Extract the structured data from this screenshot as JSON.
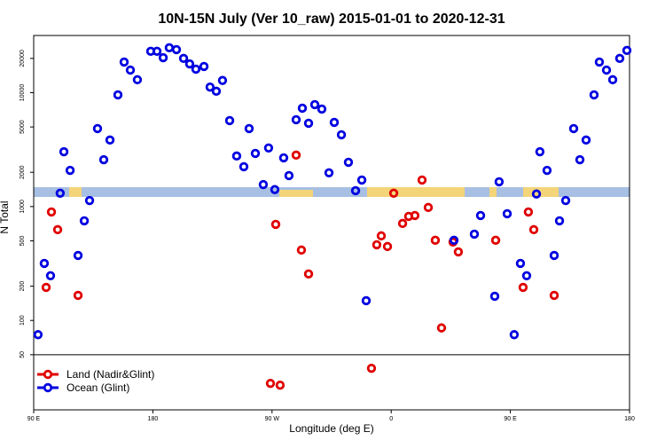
{
  "chart_data": {
    "type": "scatter",
    "title": "10N-15N July (Ver 10_raw)   2015-01-01 to 2020-12-31",
    "x_label": "Longitude (deg E)",
    "y_label": "N Total",
    "xlim": [
      90,
      540
    ],
    "xticks": [
      {
        "value": 90,
        "label": "90 E"
      },
      180,
      {
        "value": 270,
        "label": "90 W"
      },
      {
        "value": 360,
        "label": "0"
      },
      {
        "value": 450,
        "label": "90 E"
      },
      {
        "value": 540,
        "label": "180"
      }
    ],
    "ylim": [
      16.4,
      31800
    ],
    "log_y": true,
    "yticks": [
      50,
      100,
      200,
      500,
      1000,
      2000,
      5000,
      10000,
      20000
    ],
    "legend": "bottom-left",
    "series": [
      {
        "name": "Land (Nadir&Glint)",
        "color": "#e00000",
        "x": [
          99.4,
          103.4,
          108.1,
          123.5,
          272.8,
          288.2,
          292.2,
          297.6,
          345.1,
          349.1,
          352.5,
          357.2,
          361.9,
          368.6,
          373.2,
          377.9,
          383.3,
          388,
          393.3,
          398,
          406.7,
          410.7,
          438.9,
          459.6,
          463.6,
          467.7,
          483.1,
          268.8,
          276.1
        ],
        "values": [
          195,
          897,
          627,
          166,
          698,
          2830,
          415,
          256,
          38,
          462,
          553,
          446,
          1310,
          711,
          820,
          835,
          1710,
          982,
          506,
          86,
          488,
          400,
          506,
          195,
          897,
          627,
          166,
          28,
          27
        ]
      },
      {
        "name": "Ocean (Glint)",
        "color": "#0000e0",
        "x": [
          93.3,
          98,
          102.7,
          110,
          112.8,
          117.5,
          123.5,
          128.2,
          132.2,
          138.2,
          142.9,
          147.6,
          153.6,
          158.3,
          163,
          168.3,
          178.4,
          183.1,
          187.8,
          192.4,
          197.8,
          203.2,
          207.8,
          212.5,
          218.6,
          223.2,
          227.9,
          232.6,
          238,
          243.3,
          248.7,
          252.7,
          257.4,
          263.4,
          267.4,
          272.1,
          278.8,
          282.8,
          288.2,
          292.9,
          297.6,
          302.3,
          307.6,
          313,
          317,
          322.4,
          327.7,
          333.1,
          337.8,
          341.1,
          407.4,
          422.8,
          427.5,
          438.2,
          441.5,
          447.6,
          452.9,
          457.6,
          462.3,
          469.7,
          472.3,
          477.7,
          483.1,
          487.1,
          491.8,
          497.8,
          502.5,
          507.2,
          513.2,
          517.2,
          522.6,
          527.3,
          532.6,
          538
        ],
        "values": [
          75,
          317,
          247,
          1310,
          3030,
          2080,
          372,
          750,
          1130,
          4840,
          2580,
          3840,
          9570,
          18600,
          15800,
          13000,
          23100,
          23100,
          20300,
          24800,
          23900,
          20000,
          17900,
          16100,
          17000,
          11200,
          10300,
          12800,
          5690,
          2780,
          2240,
          4840,
          2930,
          1560,
          3270,
          1410,
          2680,
          1870,
          5790,
          7310,
          5390,
          7860,
          7180,
          1980,
          5490,
          4270,
          2450,
          1380,
          1710,
          149,
          506,
          573,
          835,
          163,
          1650,
          865,
          75,
          317,
          247,
          1290,
          3030,
          2080,
          372,
          750,
          1130,
          4840,
          2580,
          3840,
          9570,
          18600,
          15800,
          13000,
          20000,
          23500
        ]
      }
    ]
  }
}
